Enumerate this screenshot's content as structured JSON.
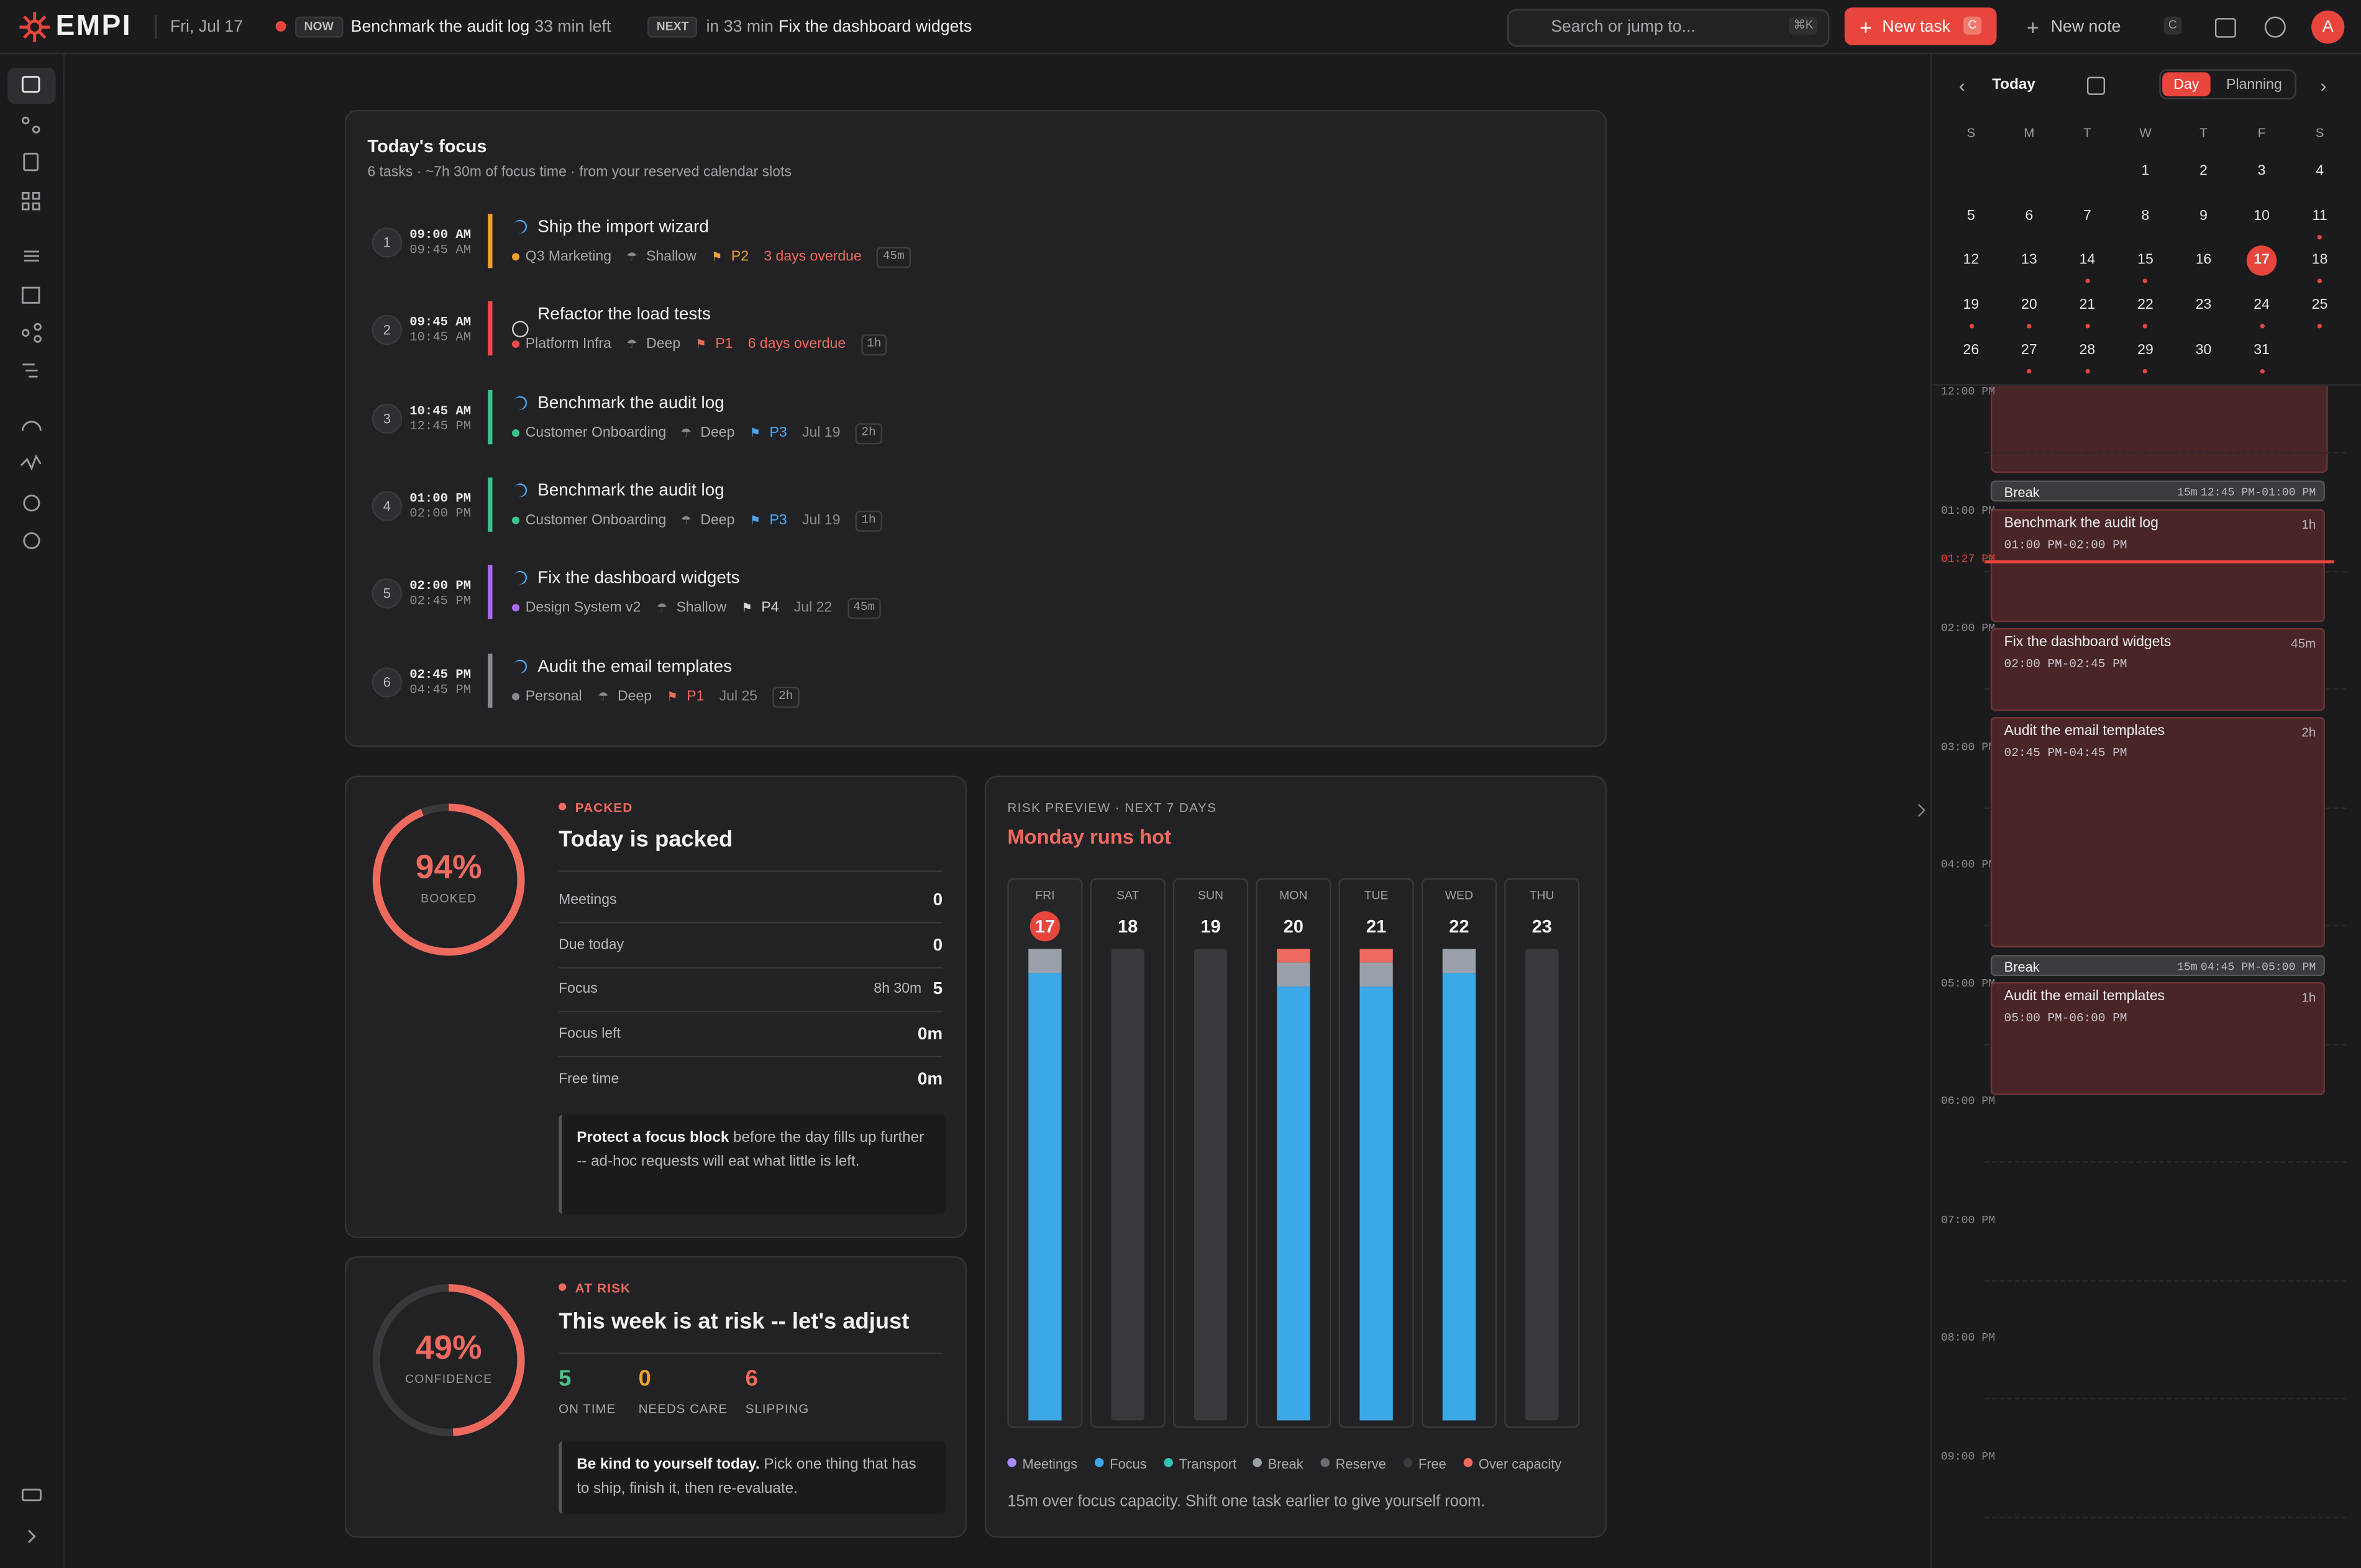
{
  "topbar": {
    "logo": "EMPI",
    "date": "Fri, Jul 17",
    "now_badge": "NOW",
    "now_task": "Benchmark the audit log",
    "now_left": "33 min left",
    "next_badge": "NEXT",
    "next_in": "in 33 min",
    "next_task": "Fix the dashboard widgets",
    "search": "Search or jump to...",
    "search_key": "⌘K",
    "new_task": "New task",
    "new_task_key": "C",
    "new_note": "New note",
    "new_note_key": "C",
    "avatar": "A"
  },
  "focus": {
    "title": "Today's focus",
    "subtitle": "6 tasks · ~7h 30m of focus time · from your reserved calendar slots",
    "tasks": [
      {
        "number": 1,
        "start": "09:00 AM",
        "end": "09:45 AM",
        "title": "Ship the import wizard",
        "status": "in-progress",
        "project": "Q3 Marketing",
        "project_color": "#f0a030",
        "depth": "Shallow",
        "priority": "P2",
        "priority_color": "#f0a030",
        "due": "3 days overdue",
        "due_color": "#f06a5a",
        "duration": "45m"
      },
      {
        "number": 2,
        "start": "09:45 AM",
        "end": "10:45 AM",
        "title": "Refactor the load tests",
        "status": "todo",
        "project": "Platform Infra",
        "project_color": "#f04a4a",
        "depth": "Deep",
        "priority": "P1",
        "priority_color": "#f06a5a",
        "due": "6 days overdue",
        "due_color": "#f06a5a",
        "duration": "1h"
      },
      {
        "number": 3,
        "start": "10:45 AM",
        "end": "12:45 PM",
        "title": "Benchmark the audit log",
        "status": "in-progress",
        "project": "Customer Onboarding",
        "project_color": "#3cc38a",
        "depth": "Deep",
        "priority": "P3",
        "priority_color": "#4aa8f0",
        "due": "Jul 19",
        "due_color": "#8a8a90",
        "duration": "2h"
      },
      {
        "number": 4,
        "start": "01:00 PM",
        "end": "02:00 PM",
        "title": "Benchmark the audit log",
        "status": "in-progress",
        "project": "Customer Onboarding",
        "project_color": "#3cc38a",
        "depth": "Deep",
        "priority": "P3",
        "priority_color": "#4aa8f0",
        "due": "Jul 19",
        "due_color": "#8a8a90",
        "duration": "1h"
      },
      {
        "number": 5,
        "start": "02:00 PM",
        "end": "02:45 PM",
        "title": "Fix the dashboard widgets",
        "status": "in-progress",
        "project": "Design System v2",
        "project_color": "#a96af0",
        "depth": "Shallow",
        "priority": "P4",
        "priority_color": "#d8d8dc",
        "due": "Jul 22",
        "due_color": "#8a8a90",
        "duration": "45m"
      },
      {
        "number": 6,
        "start": "02:45 PM",
        "end": "04:45 PM",
        "title": "Audit the email templates",
        "status": "in-progress",
        "project": "Personal",
        "project_color": "#8a8a94",
        "depth": "Deep",
        "priority": "P1",
        "priority_color": "#f06a5a",
        "due": "Jul 25",
        "due_color": "#8a8a90",
        "duration": "2h"
      }
    ]
  },
  "packed": {
    "label": "PACKED",
    "title": "Today is packed",
    "percent": 94,
    "percent_label": "94%",
    "ring_label": "BOOKED",
    "rows": [
      {
        "label": "Meetings",
        "value": "0"
      },
      {
        "label": "Due today",
        "value": "0"
      },
      {
        "label": "Focus",
        "detail": "8h 30m",
        "value": "5"
      },
      {
        "label": "Focus left",
        "value": "0m"
      },
      {
        "label": "Free time",
        "value": "0m"
      }
    ],
    "note_bold": "Protect a focus block",
    "note_rest": " before the day fills up further -- ad-hoc requests will eat what little is left."
  },
  "risk": {
    "label": "AT RISK",
    "title": "This week is at risk -- let's adjust",
    "percent": 49,
    "percent_label": "49%",
    "ring_label": "CONFIDENCE",
    "stats": [
      {
        "value": 5,
        "label": "ON TIME",
        "color": "#4cc38a"
      },
      {
        "value": 0,
        "label": "NEEDS CARE",
        "color": "#f0a030"
      },
      {
        "value": 6,
        "label": "SLIPPING",
        "color": "#f06a5a"
      }
    ],
    "note_bold": "Be kind to yourself today.",
    "note_rest": " Pick one thing that has to ship, finish it, then re-evaluate."
  },
  "preview": {
    "label": "RISK PREVIEW · NEXT 7 DAYS",
    "title": "Monday runs hot",
    "days": [
      {
        "name": "FRI",
        "date": 17,
        "today": true,
        "focus": 95,
        "break": 5,
        "over": 0
      },
      {
        "name": "SAT",
        "date": 18,
        "focus": 0,
        "break": 0,
        "over": 0
      },
      {
        "name": "SUN",
        "date": 19,
        "focus": 0,
        "break": 0,
        "over": 0
      },
      {
        "name": "MON",
        "date": 20,
        "focus": 92,
        "break": 5,
        "over": 3
      },
      {
        "name": "TUE",
        "date": 21,
        "focus": 92,
        "break": 5,
        "over": 3
      },
      {
        "name": "WED",
        "date": 22,
        "focus": 95,
        "break": 5,
        "over": 0
      },
      {
        "name": "THU",
        "date": 23,
        "focus": 0,
        "break": 0,
        "over": 0
      }
    ],
    "colors": {
      "focus": "#3ba8e8",
      "break": "#9aa0aa",
      "over": "#ef6a5e"
    },
    "legend": [
      {
        "name": "Meetings",
        "color": "#a78bfa"
      },
      {
        "name": "Focus",
        "color": "#3ba8e8"
      },
      {
        "name": "Transport",
        "color": "#2ec4b6"
      },
      {
        "name": "Break",
        "color": "#9aa0aa"
      },
      {
        "name": "Reserve",
        "color": "#6a6a72"
      },
      {
        "name": "Free",
        "color": "#3a3a40"
      },
      {
        "name": "Over capacity",
        "color": "#ef6a5e"
      }
    ],
    "footer": "15m over focus capacity. Shift one task earlier to give yourself room."
  },
  "calendar": {
    "title": "Today",
    "modes": [
      "Day",
      "Planning"
    ],
    "active_mode": 0,
    "weekdays": [
      "S",
      "M",
      "T",
      "W",
      "T",
      "F",
      "S"
    ],
    "first_column": 3,
    "days": [
      1,
      2,
      3,
      4,
      5,
      6,
      7,
      8,
      9,
      10,
      11,
      12,
      13,
      14,
      15,
      16,
      17,
      18,
      19,
      20,
      21,
      22,
      23,
      24,
      25,
      26,
      27,
      28,
      29,
      30,
      31
    ],
    "today": 17,
    "marked": [
      11,
      14,
      15,
      18,
      19,
      20,
      21,
      22,
      24,
      25,
      27,
      28,
      29,
      31
    ],
    "hours": [
      "12:00 PM",
      "01:00 PM",
      "02:00 PM",
      "03:00 PM",
      "04:00 PM",
      "05:00 PM",
      "06:00 PM",
      "07:00 PM",
      "08:00 PM",
      "09:00 PM"
    ],
    "now": "01:27 PM",
    "events": [
      {
        "kind": "break",
        "title": "Break",
        "duration": "15m",
        "time": "12:45 PM-01:00 PM"
      },
      {
        "kind": "task",
        "title": "Benchmark the audit log",
        "duration": "1h",
        "time": "01:00 PM-02:00 PM"
      },
      {
        "kind": "task",
        "title": "Fix the dashboard widgets",
        "duration": "45m",
        "time": "02:00 PM-02:45 PM"
      },
      {
        "kind": "task",
        "title": "Audit the email templates",
        "duration": "2h",
        "time": "02:45 PM-04:45 PM"
      },
      {
        "kind": "break",
        "title": "Break",
        "duration": "15m",
        "time": "04:45 PM-05:00 PM"
      },
      {
        "kind": "task",
        "title": "Audit the email templates",
        "duration": "1h",
        "time": "05:00 PM-06:00 PM"
      }
    ]
  }
}
